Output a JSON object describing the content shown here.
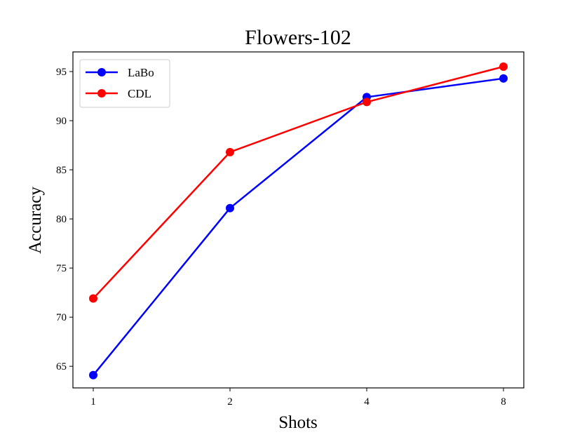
{
  "chart_data": {
    "type": "line",
    "title": "Flowers-102",
    "xlabel": "Shots",
    "ylabel": "Accuracy",
    "categories": [
      "1",
      "2",
      "4",
      "8"
    ],
    "yticks": [
      65,
      70,
      75,
      80,
      85,
      90,
      95
    ],
    "ylim": [
      62.8,
      97.0
    ],
    "grid": false,
    "legend_position": "top-left",
    "series": [
      {
        "name": "LaBo",
        "color": "#0000ff",
        "values": [
          64.1,
          81.1,
          92.4,
          94.3
        ]
      },
      {
        "name": "CDL",
        "color": "#ff0000",
        "values": [
          71.9,
          86.8,
          91.9,
          95.5
        ]
      }
    ]
  }
}
